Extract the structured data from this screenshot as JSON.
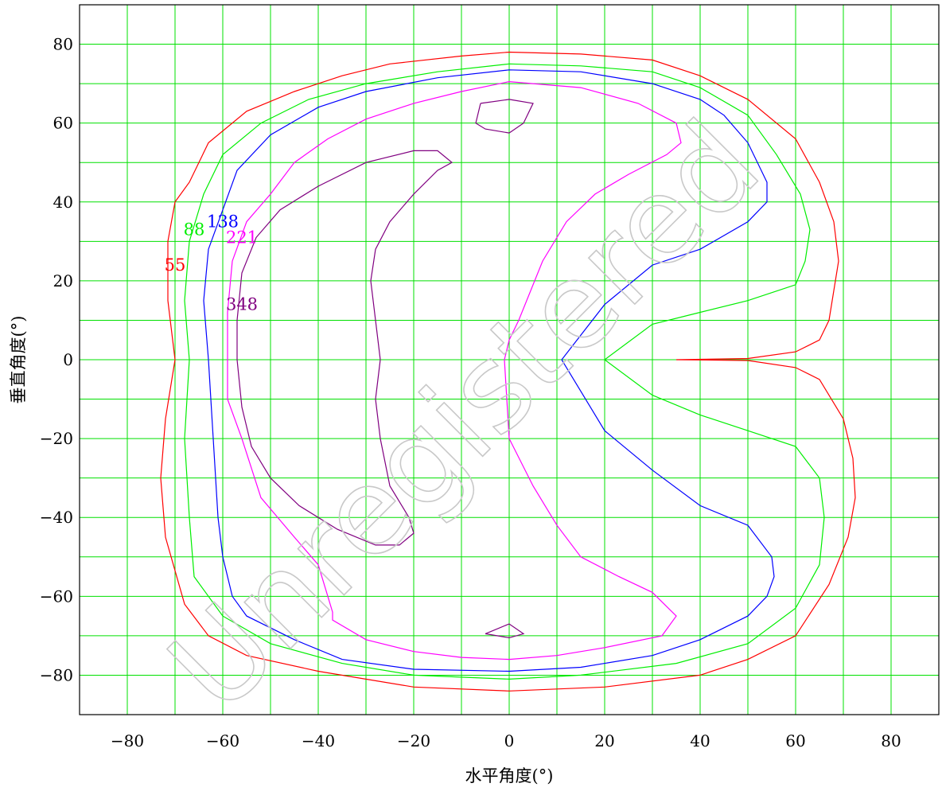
{
  "chart_data": {
    "type": "contour",
    "xlabel": "水平角度(°)",
    "ylabel": "垂直角度(°)",
    "xlim": [
      -90,
      90
    ],
    "ylim": [
      -90,
      90
    ],
    "xticks": [
      -80,
      -60,
      -40,
      -20,
      0,
      20,
      40,
      60,
      80
    ],
    "yticks": [
      -80,
      -60,
      -40,
      -20,
      0,
      20,
      40,
      60,
      80
    ],
    "x_tick_labels": [
      "−80",
      "−60",
      "−40",
      "−20",
      "0",
      "20",
      "40",
      "60",
      "80"
    ],
    "y_tick_labels": [
      "−80",
      "−60",
      "−40",
      "−20",
      "0",
      "20",
      "40",
      "60",
      "80"
    ],
    "grid": true,
    "grid_color": "#00e000",
    "watermark": "Unregistered",
    "series": [
      {
        "name": "55",
        "color": "#ff0000",
        "label_at": [
          -70,
          24
        ],
        "paths": [
          [
            [
              -70,
              0
            ],
            [
              -71.5,
              15
            ],
            [
              -71.5,
              30
            ],
            [
              -70,
              40
            ],
            [
              -67,
              45
            ],
            [
              -63,
              55
            ],
            [
              -55,
              63
            ],
            [
              -45,
              68
            ],
            [
              -35,
              72
            ],
            [
              -25,
              75
            ],
            [
              -10,
              77
            ],
            [
              0,
              78
            ],
            [
              15,
              77.5
            ],
            [
              30,
              76
            ],
            [
              40,
              72
            ],
            [
              50,
              66
            ],
            [
              60,
              56
            ],
            [
              65,
              45
            ],
            [
              68,
              35
            ],
            [
              69,
              25
            ],
            [
              67,
              10
            ],
            [
              65,
              5
            ],
            [
              60,
              2
            ],
            [
              50,
              0.3
            ],
            [
              35,
              0
            ],
            [
              50,
              -0.2
            ],
            [
              60,
              -2
            ],
            [
              65,
              -5
            ],
            [
              70,
              -15
            ],
            [
              72,
              -25
            ],
            [
              72.5,
              -35
            ],
            [
              71,
              -45
            ],
            [
              67,
              -57
            ],
            [
              60,
              -70
            ],
            [
              50,
              -76
            ],
            [
              40,
              -80
            ],
            [
              20,
              -83
            ],
            [
              0,
              -84
            ],
            [
              -20,
              -83
            ],
            [
              -40,
              -79
            ],
            [
              -55,
              -75
            ],
            [
              -63,
              -70
            ],
            [
              -68,
              -62
            ],
            [
              -72,
              -45
            ],
            [
              -73,
              -30
            ],
            [
              -72,
              -15
            ],
            [
              -70,
              0
            ]
          ]
        ]
      },
      {
        "name": "88",
        "color": "#00ee00",
        "label_at": [
          -66,
          33
        ],
        "paths": [
          [
            [
              -67,
              0
            ],
            [
              -68,
              15
            ],
            [
              -67,
              30
            ],
            [
              -64,
              42
            ],
            [
              -60,
              52
            ],
            [
              -52,
              60
            ],
            [
              -42,
              66
            ],
            [
              -30,
              70
            ],
            [
              -15,
              73
            ],
            [
              0,
              75
            ],
            [
              15,
              74.5
            ],
            [
              30,
              73
            ],
            [
              40,
              69
            ],
            [
              50,
              62
            ],
            [
              56,
              52
            ],
            [
              61,
              42
            ],
            [
              63,
              33
            ],
            [
              62,
              25
            ],
            [
              60,
              19
            ],
            [
              50,
              15
            ],
            [
              40,
              12
            ],
            [
              30,
              9
            ],
            [
              20,
              0
            ],
            [
              30,
              -9
            ],
            [
              40,
              -14
            ],
            [
              50,
              -18
            ],
            [
              60,
              -22
            ],
            [
              65,
              -30
            ],
            [
              66,
              -40
            ],
            [
              65,
              -52
            ],
            [
              60,
              -63
            ],
            [
              50,
              -72
            ],
            [
              35,
              -77
            ],
            [
              15,
              -80
            ],
            [
              0,
              -81
            ],
            [
              -20,
              -80
            ],
            [
              -35,
              -77
            ],
            [
              -50,
              -72
            ],
            [
              -60,
              -65
            ],
            [
              -66,
              -55
            ],
            [
              -67,
              -40
            ],
            [
              -68,
              -20
            ],
            [
              -67,
              0
            ]
          ]
        ]
      },
      {
        "name": "138",
        "color": "#0000ff",
        "label_at": [
          -60,
          35
        ],
        "paths": [
          [
            [
              -63,
              0
            ],
            [
              -64,
              15
            ],
            [
              -63,
              28
            ],
            [
              -60,
              38
            ],
            [
              -57,
              48
            ],
            [
              -50,
              57
            ],
            [
              -40,
              64
            ],
            [
              -30,
              68
            ],
            [
              -15,
              71.5
            ],
            [
              0,
              73.5
            ],
            [
              15,
              73
            ],
            [
              30,
              70
            ],
            [
              40,
              66
            ],
            [
              45,
              62
            ],
            [
              50,
              55
            ],
            [
              54,
              45
            ],
            [
              54,
              40
            ],
            [
              50,
              35
            ],
            [
              40,
              28
            ],
            [
              30,
              24
            ],
            [
              20,
              14
            ],
            [
              11,
              0
            ],
            [
              20,
              -18
            ],
            [
              30,
              -28
            ],
            [
              40,
              -37
            ],
            [
              50,
              -42
            ],
            [
              55,
              -50
            ],
            [
              55.5,
              -55
            ],
            [
              54,
              -60
            ],
            [
              50,
              -65
            ],
            [
              40,
              -71
            ],
            [
              30,
              -75
            ],
            [
              15,
              -78
            ],
            [
              0,
              -79
            ],
            [
              -20,
              -78.5
            ],
            [
              -35,
              -76
            ],
            [
              -45,
              -71
            ],
            [
              -55,
              -65
            ],
            [
              -58,
              -60
            ],
            [
              -60,
              -50
            ],
            [
              -61,
              -40
            ],
            [
              -62,
              -20
            ],
            [
              -63,
              0
            ]
          ]
        ]
      },
      {
        "name": "221",
        "color": "#ff00ff",
        "label_at": [
          -56,
          31
        ],
        "paths": [
          [
            [
              -59,
              0
            ],
            [
              -59,
              12
            ],
            [
              -58,
              25
            ],
            [
              -55,
              35
            ],
            [
              -50,
              42
            ],
            [
              -45,
              50
            ],
            [
              -38,
              56
            ],
            [
              -30,
              61
            ],
            [
              -20,
              65
            ],
            [
              -10,
              68
            ],
            [
              0,
              70.5
            ],
            [
              15,
              69
            ],
            [
              27,
              65
            ],
            [
              35,
              60
            ],
            [
              36,
              55
            ],
            [
              33,
              52
            ],
            [
              25,
              47
            ],
            [
              18,
              42
            ],
            [
              12,
              35
            ],
            [
              7,
              25
            ],
            [
              2,
              10
            ],
            [
              0,
              5
            ],
            [
              -1,
              0
            ],
            [
              0,
              -20
            ],
            [
              5,
              -32
            ],
            [
              10,
              -42
            ],
            [
              15,
              -50
            ],
            [
              23,
              -55
            ],
            [
              30,
              -59
            ],
            [
              35,
              -65
            ],
            [
              32,
              -70
            ],
            [
              20,
              -73
            ],
            [
              10,
              -75
            ],
            [
              0,
              -76
            ],
            [
              -10,
              -75.5
            ],
            [
              -20,
              -74
            ],
            [
              -30,
              -71
            ],
            [
              -37,
              -66
            ],
            [
              -37,
              -64
            ],
            [
              -38,
              -60
            ],
            [
              -40,
              -52
            ],
            [
              -45,
              -45
            ],
            [
              -52,
              -35
            ],
            [
              -56,
              -20
            ],
            [
              -59,
              -10
            ],
            [
              -59,
              0
            ]
          ]
        ]
      },
      {
        "name": "348",
        "color": "#800080",
        "label_at": [
          -56,
          14
        ],
        "paths": [
          [
            [
              -27,
              0
            ],
            [
              -28,
              10
            ],
            [
              -29,
              20
            ],
            [
              -28,
              28
            ],
            [
              -25,
              35
            ],
            [
              -20,
              42
            ],
            [
              -15,
              48
            ],
            [
              -12,
              50
            ],
            [
              -15,
              53
            ],
            [
              -20,
              53
            ],
            [
              -30,
              50
            ],
            [
              -40,
              44
            ],
            [
              -48,
              38
            ],
            [
              -53,
              31
            ],
            [
              -56,
              22
            ],
            [
              -57,
              10
            ],
            [
              -57,
              0
            ],
            [
              -56,
              -12
            ],
            [
              -54,
              -22
            ],
            [
              -50,
              -30
            ],
            [
              -44,
              -37
            ],
            [
              -36,
              -43
            ],
            [
              -28,
              -47
            ],
            [
              -23,
              -47
            ],
            [
              -20,
              -44
            ],
            [
              -21,
              -40
            ],
            [
              -25,
              -32
            ],
            [
              -27,
              -20
            ],
            [
              -28,
              -10
            ],
            [
              -27,
              0
            ]
          ],
          [
            [
              -6,
              65
            ],
            [
              0,
              66
            ],
            [
              5,
              65
            ],
            [
              3,
              60
            ],
            [
              0,
              57.5
            ],
            [
              -5,
              58.5
            ],
            [
              -7,
              60
            ],
            [
              -6,
              65
            ]
          ],
          [
            [
              -5,
              -69.5
            ],
            [
              0,
              -67
            ],
            [
              3,
              -69.5
            ],
            [
              0,
              -70.5
            ],
            [
              -5,
              -69.5
            ]
          ]
        ]
      }
    ]
  }
}
